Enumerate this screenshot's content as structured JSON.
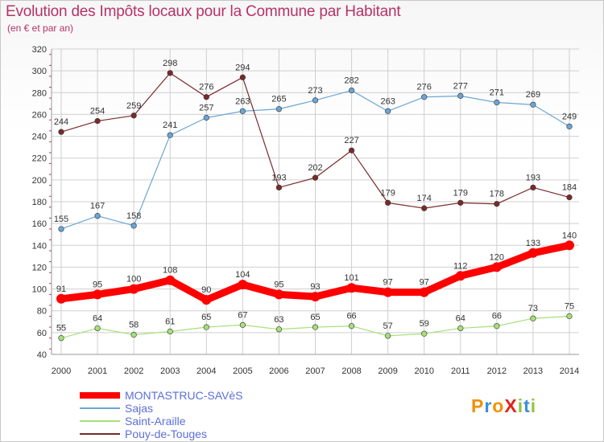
{
  "title": "Evolution des Impôts locaux pour la Commune par Habitant",
  "subtitle": "(en € et par an)",
  "logo": {
    "text": "ProXiti",
    "colors": [
      "#f29000",
      "#3b8fd8",
      "#f29000",
      "#e2231a",
      "#8cc63f",
      "#3b8fd8",
      "#8cc63f"
    ]
  },
  "colors": {
    "accent": "#b63267",
    "grid": "#cfcfcf"
  },
  "chart_data": {
    "type": "line",
    "title": "Evolution des Impôts locaux pour la Commune par Habitant",
    "subtitle": "(en € et par an)",
    "x": [
      "2000",
      "2001",
      "2002",
      "2003",
      "2004",
      "2005",
      "2006",
      "2007",
      "2008",
      "2009",
      "2010",
      "2011",
      "2012",
      "2013",
      "2014"
    ],
    "ylim": [
      40,
      320
    ],
    "yticks": [
      40,
      60,
      80,
      100,
      120,
      140,
      160,
      180,
      200,
      220,
      240,
      260,
      280,
      300,
      320
    ],
    "grid": true,
    "legend_position": "bottom-left",
    "series": [
      {
        "name": "MONTASTRUC-SAVèS",
        "color": "#ff0000",
        "values": [
          91,
          95,
          100,
          108,
          90,
          104,
          95,
          93,
          101,
          97,
          97,
          112,
          120,
          133,
          140
        ]
      },
      {
        "name": "Sajas",
        "color": "#6aa6d6",
        "values": [
          155,
          167,
          158,
          241,
          257,
          263,
          265,
          273,
          282,
          263,
          276,
          277,
          271,
          269,
          249
        ]
      },
      {
        "name": "Saint-Araille",
        "color": "#a6e07a",
        "values": [
          55,
          64,
          58,
          61,
          65,
          67,
          63,
          65,
          66,
          57,
          59,
          64,
          66,
          73,
          75
        ]
      },
      {
        "name": "Pouy-de-Touges",
        "color": "#7a2a2a",
        "values": [
          244,
          254,
          259,
          298,
          276,
          294,
          193,
          202,
          227,
          179,
          174,
          179,
          178,
          193,
          184
        ]
      }
    ]
  }
}
